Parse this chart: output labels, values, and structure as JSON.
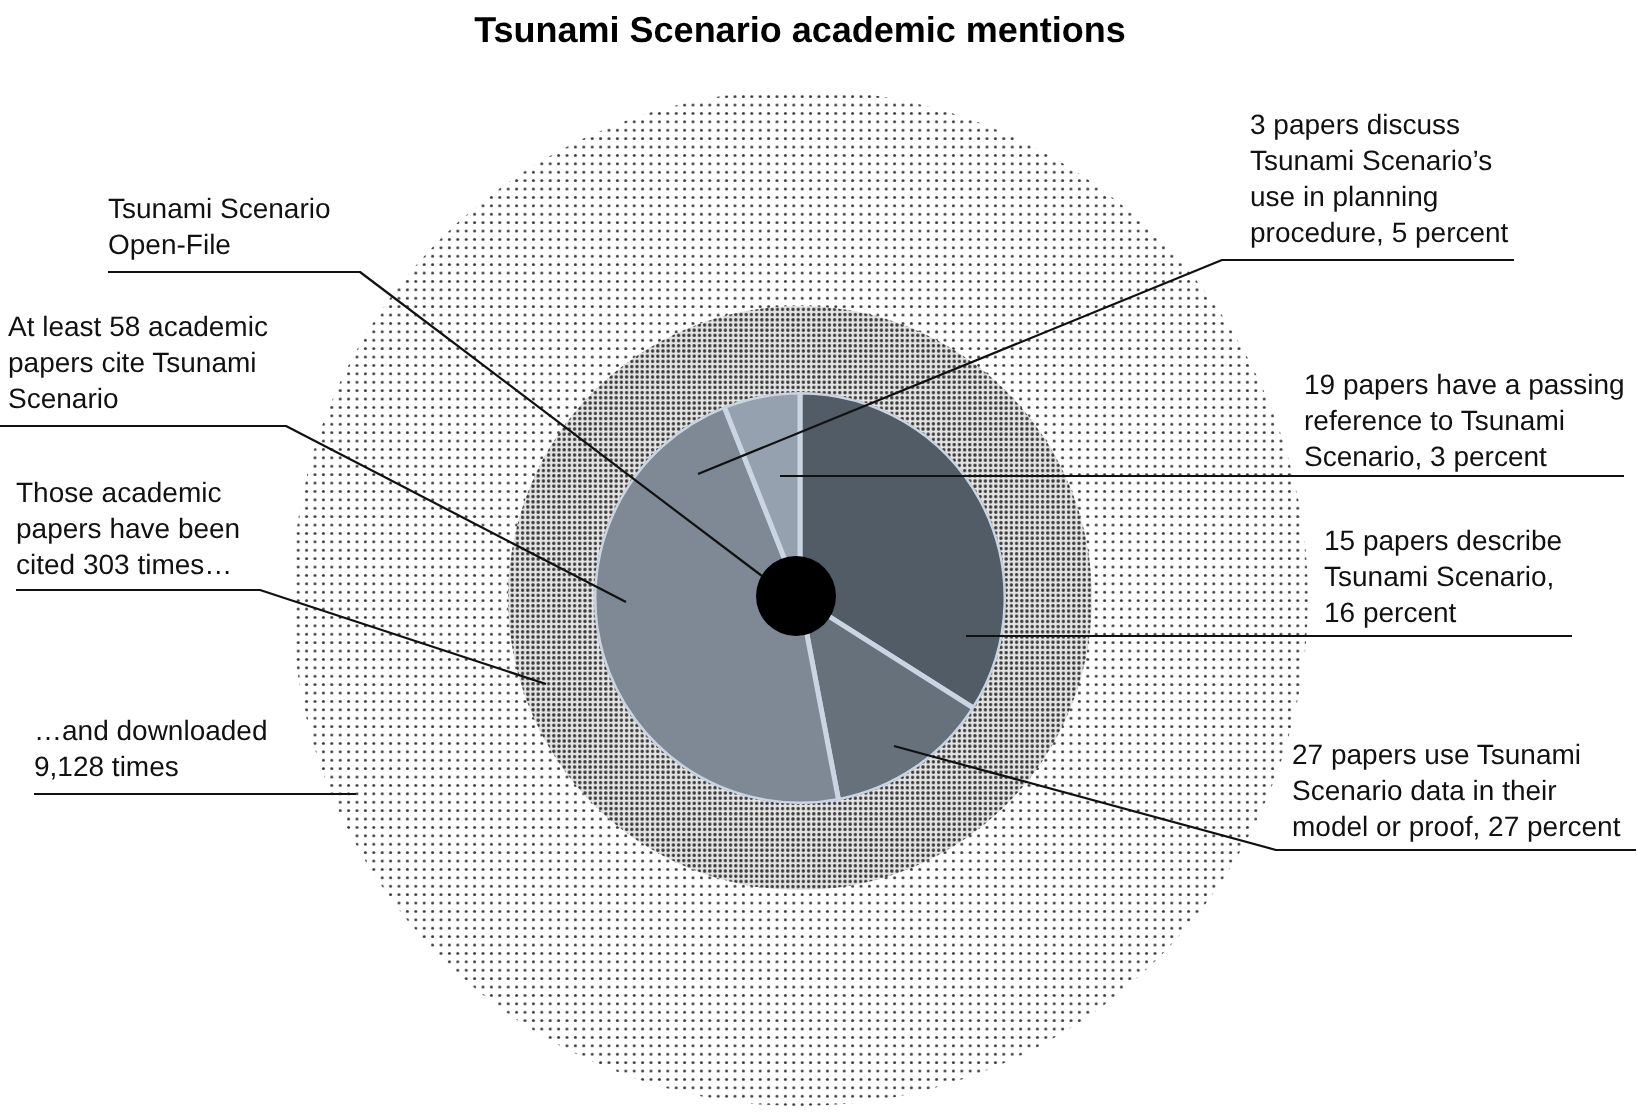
{
  "chart_data": {
    "type": "pie",
    "title": "Tsunami Scenario academic mentions",
    "categories": [
      null,
      null,
      null,
      null
    ],
    "values": [
      34,
      13,
      47,
      6
    ],
    "colors": [
      "#525c67",
      "#67717c",
      "#7e8995",
      "#95a1ae"
    ],
    "annotations": [
      "Tsunami Scenario Open-File",
      "At least 58 academic papers cite Tsunami Scenario",
      "Those academic papers have been cited 303 times…",
      "…and downloaded 9,128 times",
      "3 papers discuss Tsunami Scenario’s use in planning procedure, 5 percent",
      "19 papers have a passing reference to Tsunami Scenario, 3 percent",
      "15 papers describe Tsunami Scenario, 16 percent",
      "27 papers use Tsunami Scenario data in their model or proof, 27 percent"
    ]
  }
}
